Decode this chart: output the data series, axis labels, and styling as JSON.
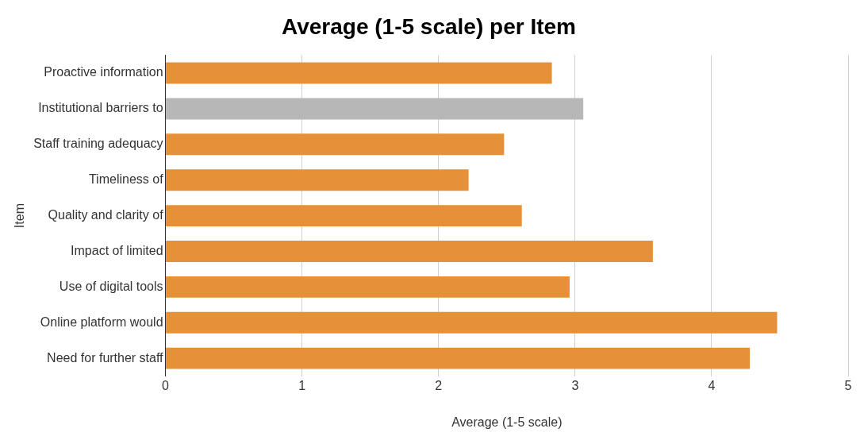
{
  "chart_data": {
    "type": "bar",
    "orientation": "horizontal",
    "title": "Average (1-5 scale) per Item",
    "xlabel": "Average (1-5 scale)",
    "ylabel": "Item",
    "categories": [
      "Proactive information",
      "Institutional barriers to",
      "Staff training adequacy",
      "Timeliness of",
      "Quality and clarity of",
      "Impact of limited",
      "Use of digital tools",
      "Online platform would",
      "Need for further staff"
    ],
    "values": [
      2.83,
      3.06,
      2.48,
      2.22,
      2.61,
      3.57,
      2.96,
      4.48,
      4.28
    ],
    "colors": [
      "#e69138",
      "#b7b7b7",
      "#e69138",
      "#e69138",
      "#e69138",
      "#e69138",
      "#e69138",
      "#e69138",
      "#e69138"
    ],
    "xlim": [
      0,
      5
    ],
    "xticks": [
      0,
      1,
      2,
      3,
      4,
      5
    ],
    "grid": "x",
    "legend": false
  }
}
